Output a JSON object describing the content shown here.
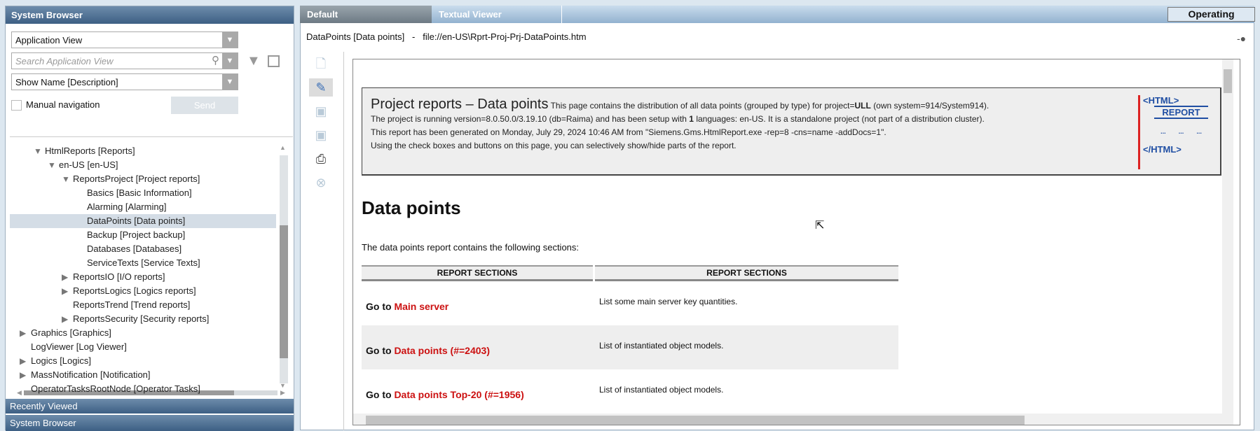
{
  "left_panel": {
    "title": "System Browser",
    "view_select": "Application View",
    "search_placeholder": "Search Application View",
    "display_select": "Show Name [Description]",
    "manual_navigation_label": "Manual navigation",
    "manual_navigation_checked": false,
    "send_label": "Send",
    "tree": [
      {
        "label": "HtmlReports [Reports]",
        "level": 2,
        "toggle": "expanded"
      },
      {
        "label": "en-US [en-US]",
        "level": 3,
        "toggle": "expanded"
      },
      {
        "label": "ReportsProject [Project reports]",
        "level": 4,
        "toggle": "expanded"
      },
      {
        "label": "Basics [Basic Information]",
        "level": 5,
        "toggle": "none"
      },
      {
        "label": "Alarming [Alarming]",
        "level": 5,
        "toggle": "none"
      },
      {
        "label": "DataPoints [Data points]",
        "level": 5,
        "toggle": "none",
        "selected": true
      },
      {
        "label": "Backup [Project backup]",
        "level": 5,
        "toggle": "none"
      },
      {
        "label": "Databases [Databases]",
        "level": 5,
        "toggle": "none"
      },
      {
        "label": "ServiceTexts [Service Texts]",
        "level": 5,
        "toggle": "none"
      },
      {
        "label": "ReportsIO [I/O reports]",
        "level": 4,
        "toggle": "collapsed"
      },
      {
        "label": "ReportsLogics [Logics reports]",
        "level": 4,
        "toggle": "collapsed"
      },
      {
        "label": "ReportsTrend [Trend reports]",
        "level": 4,
        "toggle": "none"
      },
      {
        "label": "ReportsSecurity [Security reports]",
        "level": 4,
        "toggle": "collapsed"
      },
      {
        "label": "Graphics [Graphics]",
        "level": 1,
        "toggle": "collapsed"
      },
      {
        "label": "LogViewer [Log Viewer]",
        "level": 1,
        "toggle": "none"
      },
      {
        "label": "Logics [Logics]",
        "level": 1,
        "toggle": "collapsed"
      },
      {
        "label": "MassNotification [Notification]",
        "level": 1,
        "toggle": "collapsed"
      },
      {
        "label": "OperatorTasksRootNode [Operator Tasks]",
        "level": 1,
        "toggle": "none"
      }
    ],
    "bottom_sections": [
      "Recently Viewed",
      "System Browser"
    ]
  },
  "main": {
    "tabs": [
      {
        "label": "Default",
        "active": true
      },
      {
        "label": "Textual Viewer",
        "active": false
      }
    ],
    "mode_button": "Operating",
    "path_name": "DataPoints [Data points]",
    "path_sep": "-",
    "path_url": "file://en-US\\Rprt-Proj-Prj-DataPoints.htm",
    "toolbar_icons": [
      "new-document-icon",
      "edit-pen-icon",
      "save-icon",
      "save-as-icon",
      "print-icon",
      "close-circle-icon"
    ]
  },
  "report": {
    "title": "Project reports – Data points",
    "line1_pre": "This page contains the distribution of all data points (grouped by type) for project=",
    "project": "ULL",
    "line1_post": "(own system=914/System914).",
    "line2_pre": "The project is running version=8.0.50.0/3.19.10 (db=Raima) and has been setup with ",
    "lang_count": "1",
    "line2_post": " languages: en-US. It is a standalone project (not part of a distribution cluster).",
    "line3": "This report has been generated on Monday, July 29, 2024 10:46 AM from \"Siemens.Gms.HtmlReport.exe -rep=8 -cns=name -addDocs=1\".",
    "line4": "Using the check boxes and buttons on this page, you can selectively show/hide parts of the report.",
    "logo": {
      "top": "<HTML>",
      "mid": "REPORT",
      "bottom": "</HTML>",
      "cell": "..."
    },
    "heading": "Data points",
    "intro": "The data points report contains the following sections:",
    "table": {
      "headers": [
        "REPORT SECTIONS",
        "REPORT SECTIONS"
      ],
      "rows": [
        {
          "prefix": "Go to ",
          "link": "Main server",
          "desc": "List some main server key quantities."
        },
        {
          "prefix": "Go to ",
          "link": "Data points (#=2403)",
          "desc": "List of instantiated object models."
        },
        {
          "prefix": "Go to ",
          "link": "Data points Top-20 (#=1956)",
          "desc": "List of instantiated object models."
        }
      ]
    }
  },
  "colors": {
    "header_blue": "#3d5f84",
    "link_red": "#cc1111",
    "logo_blue": "#1f4ea3",
    "selected_row": "#d4dde6"
  }
}
